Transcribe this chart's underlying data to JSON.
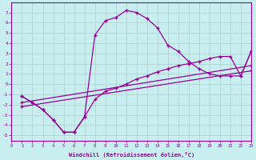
{
  "xlabel": "Windchill (Refroidissement éolien,°C)",
  "bg_color": "#c8eef0",
  "line_color": "#990099",
  "grid_color": "#aacccc",
  "xlim": [
    0,
    23
  ],
  "ylim": [
    -5.5,
    8.0
  ],
  "xticks": [
    0,
    1,
    2,
    3,
    4,
    5,
    6,
    7,
    8,
    9,
    10,
    11,
    12,
    13,
    14,
    15,
    16,
    17,
    18,
    19,
    20,
    21,
    22,
    23
  ],
  "yticks": [
    -5,
    -4,
    -3,
    -2,
    -1,
    0,
    1,
    2,
    3,
    4,
    5,
    6,
    7
  ],
  "curve1_x": [
    1,
    2,
    3,
    4,
    5,
    6,
    7,
    8,
    9,
    10,
    11,
    12,
    13,
    14,
    15,
    16,
    17,
    18,
    19,
    20,
    21,
    22,
    23
  ],
  "curve1_y": [
    -1.2,
    -1.8,
    -2.5,
    -3.5,
    -4.7,
    -4.7,
    -3.2,
    4.8,
    6.2,
    6.5,
    7.2,
    7.0,
    6.4,
    5.5,
    3.8,
    3.2,
    2.2,
    1.5,
    1.0,
    0.8,
    0.8,
    0.8,
    3.2
  ],
  "curve2_x": [
    1,
    2,
    3,
    4,
    5,
    6,
    7,
    8,
    9,
    10,
    11,
    12,
    13,
    14,
    15,
    16,
    17,
    18,
    19,
    20,
    21,
    22,
    23
  ],
  "curve2_y": [
    -1.2,
    -1.8,
    -2.5,
    -3.5,
    -4.7,
    -4.7,
    -3.2,
    -1.5,
    -0.7,
    -0.4,
    0.0,
    0.5,
    0.8,
    1.2,
    1.5,
    1.8,
    2.0,
    2.2,
    2.5,
    2.7,
    2.7,
    0.8,
    3.2
  ],
  "line3_x": [
    1,
    23
  ],
  "line3_y": [
    -1.8,
    1.8
  ],
  "line4_x": [
    1,
    23
  ],
  "line4_y": [
    -2.2,
    1.3
  ]
}
